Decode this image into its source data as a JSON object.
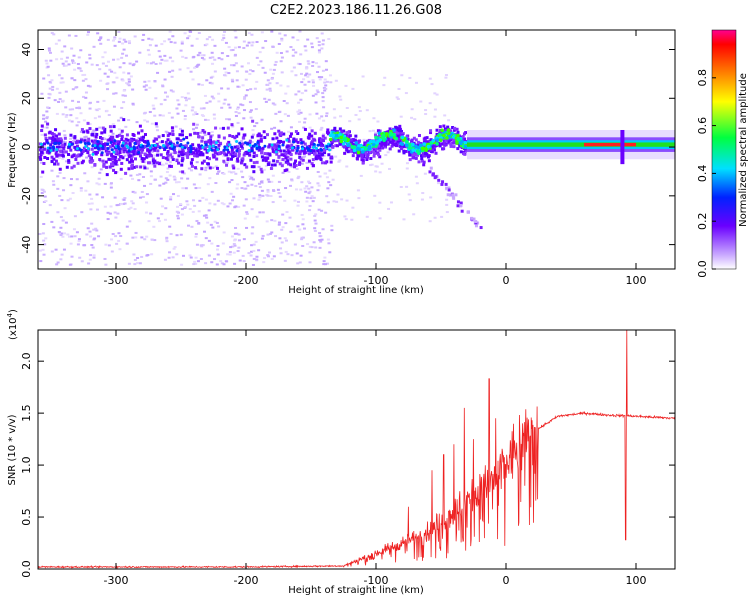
{
  "title": "C2E2.2023.186.11.26.G08",
  "colors": {
    "snr_line": "#ee2222",
    "axis": "#000000",
    "background": "#ffffff"
  },
  "chart_data": [
    {
      "type": "heatmap",
      "name": "spectrogram",
      "xlabel": "Height of straight line (km)",
      "ylabel": "Frequency (Hz)",
      "xlim": [
        -360,
        130
      ],
      "ylim": [
        -50,
        48
      ],
      "xticks": [
        -300,
        -200,
        -100,
        0,
        100
      ],
      "yticks": [
        -40,
        -20,
        0,
        20,
        40
      ],
      "colorbar": {
        "label": "Normalized spectral amplitude",
        "range": [
          0.0,
          1.0
        ],
        "ticks": [
          "0.0",
          "0.2",
          "0.4",
          "0.6",
          "0.8"
        ]
      },
      "regions": [
        {
          "x": [
            -360,
            -135
          ],
          "freq_center": 0,
          "freq_spread": 48,
          "description": "broadband noise"
        },
        {
          "x": [
            -135,
            -30
          ],
          "freq_center": 2,
          "freq_spread": 8,
          "description": "scintillating signal"
        },
        {
          "x": [
            -30,
            130
          ],
          "freq_center": 1,
          "freq_spread": 2,
          "description": "steady signal"
        }
      ]
    },
    {
      "type": "line",
      "name": "snr",
      "xlabel": "Height of straight line (km)",
      "ylabel": "SNR (10 * v/v)",
      "multiplier": "(x10",
      "multiplier_exp": "4",
      "multiplier_close": ")",
      "xlim": [
        -360,
        130
      ],
      "ylim": [
        0,
        2.3
      ],
      "xticks": [
        -300,
        -200,
        -100,
        0,
        100
      ],
      "yticks": [
        "0.0",
        "0.5",
        "1.0",
        "1.5",
        "2.0"
      ],
      "series": [
        {
          "name": "SNR",
          "profile": [
            [
              -360,
              0.02
            ],
            [
              -200,
              0.02
            ],
            [
              -125,
              0.03
            ],
            [
              -115,
              0.08
            ],
            [
              -100,
              0.15
            ],
            [
              -80,
              0.25
            ],
            [
              -60,
              0.35
            ],
            [
              -40,
              0.55
            ],
            [
              -20,
              0.75
            ],
            [
              -10,
              0.85
            ],
            [
              0,
              1.0
            ],
            [
              10,
              1.2
            ],
            [
              25,
              1.35
            ],
            [
              40,
              1.47
            ],
            [
              60,
              1.5
            ],
            [
              80,
              1.48
            ],
            [
              100,
              1.47
            ],
            [
              130,
              1.45
            ]
          ],
          "spikes": [
            [
              -13,
              1.83
            ],
            [
              -32,
              1.55
            ],
            [
              -8,
              1.45
            ],
            [
              -48,
              1.1
            ],
            [
              -57,
              0.95
            ],
            [
              -25,
              1.25
            ],
            [
              -40,
              1.2
            ],
            [
              -75,
              0.6
            ],
            [
              93,
              2.3
            ],
            [
              92,
              0.28
            ]
          ]
        }
      ]
    }
  ]
}
